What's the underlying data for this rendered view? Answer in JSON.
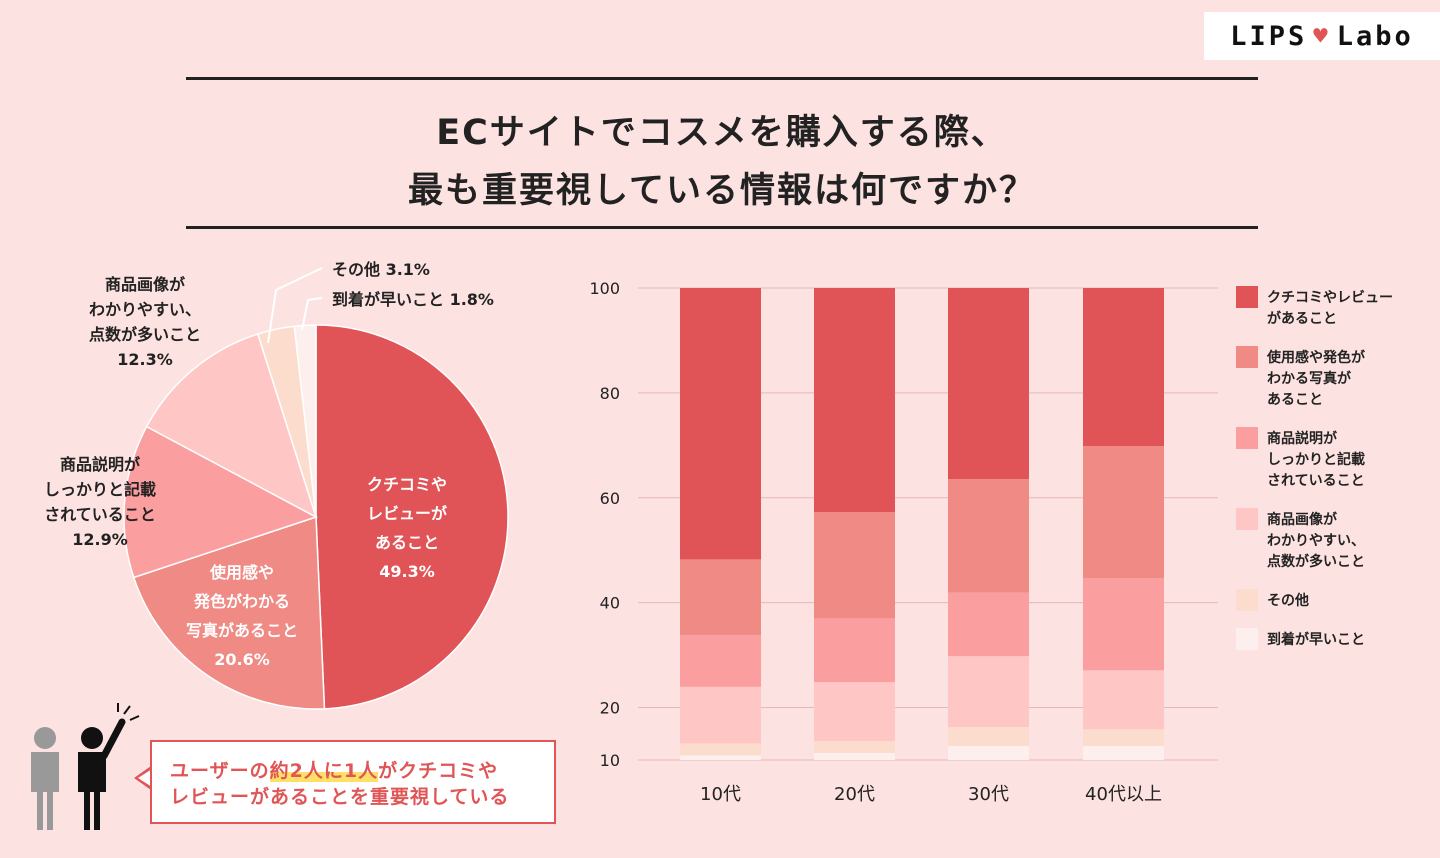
{
  "brand": {
    "logo_left": "LIPS",
    "logo_mark": "♥",
    "logo_right": "Labo"
  },
  "title": {
    "line1": "ECサイトでコスメを購入する際、",
    "line2": "最も重要視している情報は何ですか？"
  },
  "colors": {
    "kuchikomi": "#e05357",
    "shiyoukan": "#ef8a85",
    "setsumei": "#fa9ea0",
    "gazou": "#ffc6c6",
    "sonota": "#fcdccc",
    "touchaku": "#fdefee",
    "background": "#fce2e1",
    "accent": "#e05555"
  },
  "chart_data": [
    {
      "type": "pie",
      "slices": [
        {
          "label_lines": [
            "クチコミや",
            "レビューが",
            "あること"
          ],
          "value_text": "49.3%",
          "value": 49.3,
          "color_key": "kuchikomi"
        },
        {
          "label_lines": [
            "使用感や",
            "発色がわかる",
            "写真があること"
          ],
          "value_text": "20.6%",
          "value": 20.6,
          "color_key": "shiyoukan"
        },
        {
          "label_lines": [
            "商品説明が",
            "しっかりと記載",
            "されていること"
          ],
          "value_text": "12.9%",
          "value": 12.9,
          "color_key": "setsumei"
        },
        {
          "label_lines": [
            "商品画像が",
            "わかりやすい、",
            "点数が多いこと"
          ],
          "value_text": "12.3%",
          "value": 12.3,
          "color_key": "gazou"
        },
        {
          "label_lines": [
            "その他 3.1%"
          ],
          "value_text": "",
          "value": 3.1,
          "color_key": "sonota"
        },
        {
          "label_lines": [
            "到着が早いこと 1.8%"
          ],
          "value_text": "",
          "value": 1.8,
          "color_key": "touchaku"
        }
      ]
    },
    {
      "type": "bar",
      "stacked": true,
      "categories": [
        "10代",
        "20代",
        "30代",
        "40代以上"
      ],
      "yticks": [
        "100",
        "80",
        "60",
        "40",
        "20",
        "10"
      ],
      "ylim": [
        10,
        100
      ],
      "grid": true,
      "legend_position": "right",
      "series": [
        {
          "name": "到着が早いこと",
          "color_key": "touchaku",
          "values": [
            1,
            1.5,
            3,
            3
          ]
        },
        {
          "name": "その他",
          "color_key": "sonota",
          "values": [
            2.5,
            2.5,
            4,
            3.5
          ]
        },
        {
          "name": "商品画像がわかりやすい、点数が多いこと",
          "color_key": "gazou",
          "values": [
            12,
            12.5,
            15,
            12.5
          ]
        },
        {
          "name": "商品説明がしっかりと記載されていること",
          "color_key": "setsumei",
          "values": [
            11,
            13.5,
            13.5,
            19.5
          ]
        },
        {
          "name": "使用感や発色がわかる写真があること",
          "color_key": "shiyoukan",
          "values": [
            16,
            22.5,
            24,
            28
          ]
        },
        {
          "name": "クチコミやレビューがあること",
          "color_key": "kuchikomi",
          "values": [
            57.5,
            47.5,
            40.5,
            33.5
          ]
        }
      ],
      "legend": [
        {
          "color_key": "kuchikomi",
          "lines": [
            "クチコミやレビュー",
            "があること"
          ]
        },
        {
          "color_key": "shiyoukan",
          "lines": [
            "使用感や発色が",
            "わかる写真が",
            "あること"
          ]
        },
        {
          "color_key": "setsumei",
          "lines": [
            "商品説明が",
            "しっかりと記載",
            "されていること"
          ]
        },
        {
          "color_key": "gazou",
          "lines": [
            "商品画像が",
            "わかりやすい、",
            "点数が多いこと"
          ]
        },
        {
          "color_key": "sonota",
          "lines": [
            "その他"
          ]
        },
        {
          "color_key": "touchaku",
          "lines": [
            "到着が早いこと"
          ]
        }
      ]
    }
  ],
  "callout": {
    "part1": "ユーザーの",
    "highlight": "約2人に1人",
    "part2": "がクチコミや",
    "line2": "レビューがあることを重要視している"
  }
}
